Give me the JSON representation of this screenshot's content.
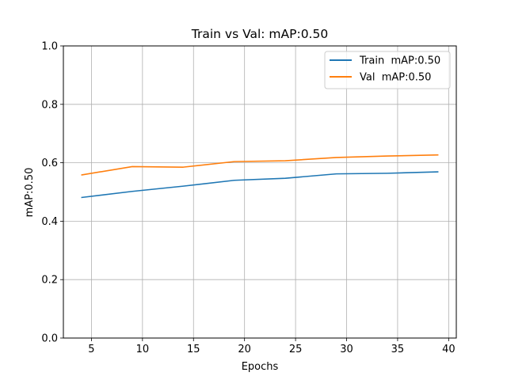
{
  "chart_data": {
    "type": "line",
    "title": "Train vs Val:  mAP:0.50",
    "xlabel": "Epochs",
    "ylabel": "mAP:0.50",
    "xlim": [
      2.25,
      40.75
    ],
    "ylim": [
      0.0,
      1.0
    ],
    "xticks": [
      5,
      10,
      15,
      20,
      25,
      30,
      35,
      40
    ],
    "yticks": [
      0.0,
      0.2,
      0.4,
      0.6,
      0.8,
      1.0
    ],
    "grid": true,
    "legend_position": "top-right",
    "series": [
      {
        "name": "Train  mAP:0.50",
        "color": "#1f77b4",
        "x": [
          4,
          9,
          14,
          19,
          24,
          29,
          34,
          39
        ],
        "y": [
          0.481,
          0.502,
          0.52,
          0.54,
          0.547,
          0.562,
          0.564,
          0.569
        ]
      },
      {
        "name": "Val  mAP:0.50",
        "color": "#ff7f0e",
        "x": [
          4,
          9,
          14,
          19,
          24,
          29,
          34,
          39
        ],
        "y": [
          0.558,
          0.587,
          0.585,
          0.604,
          0.607,
          0.618,
          0.623,
          0.627
        ]
      }
    ]
  }
}
